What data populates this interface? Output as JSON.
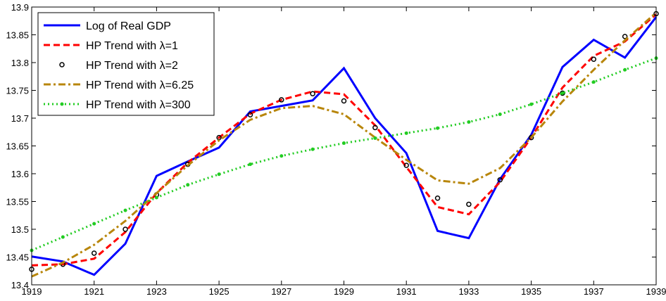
{
  "chart_data": {
    "type": "line",
    "x": [
      1919,
      1920,
      1921,
      1922,
      1923,
      1924,
      1925,
      1926,
      1927,
      1928,
      1929,
      1930,
      1931,
      1932,
      1933,
      1934,
      1935,
      1936,
      1937,
      1938,
      1939
    ],
    "xlim": [
      1919,
      1939
    ],
    "xticks": [
      1919,
      1921,
      1923,
      1925,
      1927,
      1929,
      1931,
      1933,
      1935,
      1937,
      1939
    ],
    "ylim": [
      13.4,
      13.9
    ],
    "yticks": [
      13.4,
      13.45,
      13.5,
      13.55,
      13.6,
      13.65,
      13.7,
      13.75,
      13.8,
      13.85,
      13.9
    ],
    "legend": "upper left",
    "series": [
      {
        "name": "Log of Real GDP",
        "color": "#0000ff",
        "style": "solid",
        "marker": "none",
        "values": [
          13.451,
          13.442,
          13.418,
          13.474,
          13.596,
          13.622,
          13.647,
          13.712,
          13.722,
          13.732,
          13.79,
          13.7,
          13.637,
          13.497,
          13.484,
          13.59,
          13.67,
          13.792,
          13.841,
          13.809,
          13.882
        ]
      },
      {
        "name": "HP Trend with λ=1",
        "color": "#ff0000",
        "style": "dashed",
        "marker": "none",
        "values": [
          13.435,
          13.437,
          13.447,
          13.495,
          13.565,
          13.62,
          13.665,
          13.708,
          13.733,
          13.748,
          13.743,
          13.687,
          13.612,
          13.54,
          13.527,
          13.585,
          13.665,
          13.755,
          13.812,
          13.838,
          13.887
        ]
      },
      {
        "name": "HP Trend with λ=2",
        "color": "#000000",
        "style": "none",
        "marker": "circle",
        "values": [
          13.428,
          13.437,
          13.457,
          13.5,
          13.562,
          13.617,
          13.665,
          13.706,
          13.733,
          13.744,
          13.731,
          13.683,
          13.615,
          13.556,
          13.545,
          13.589,
          13.665,
          13.745,
          13.806,
          13.847,
          13.888
        ]
      },
      {
        "name": "HP Trend with λ=6.25",
        "color": "#b8860b",
        "style": "dashdot",
        "marker": "none",
        "values": [
          13.415,
          13.44,
          13.472,
          13.515,
          13.565,
          13.615,
          13.66,
          13.697,
          13.718,
          13.722,
          13.707,
          13.665,
          13.625,
          13.588,
          13.582,
          13.61,
          13.665,
          13.73,
          13.787,
          13.84,
          13.89
        ]
      },
      {
        "name": "HP Trend with λ=300",
        "color": "#22cc22",
        "style": "dotted",
        "marker": "dot",
        "values": [
          13.462,
          13.486,
          13.51,
          13.534,
          13.557,
          13.58,
          13.599,
          13.617,
          13.632,
          13.644,
          13.655,
          13.664,
          13.673,
          13.682,
          13.693,
          13.707,
          13.725,
          13.745,
          13.765,
          13.787,
          13.808
        ]
      }
    ]
  }
}
